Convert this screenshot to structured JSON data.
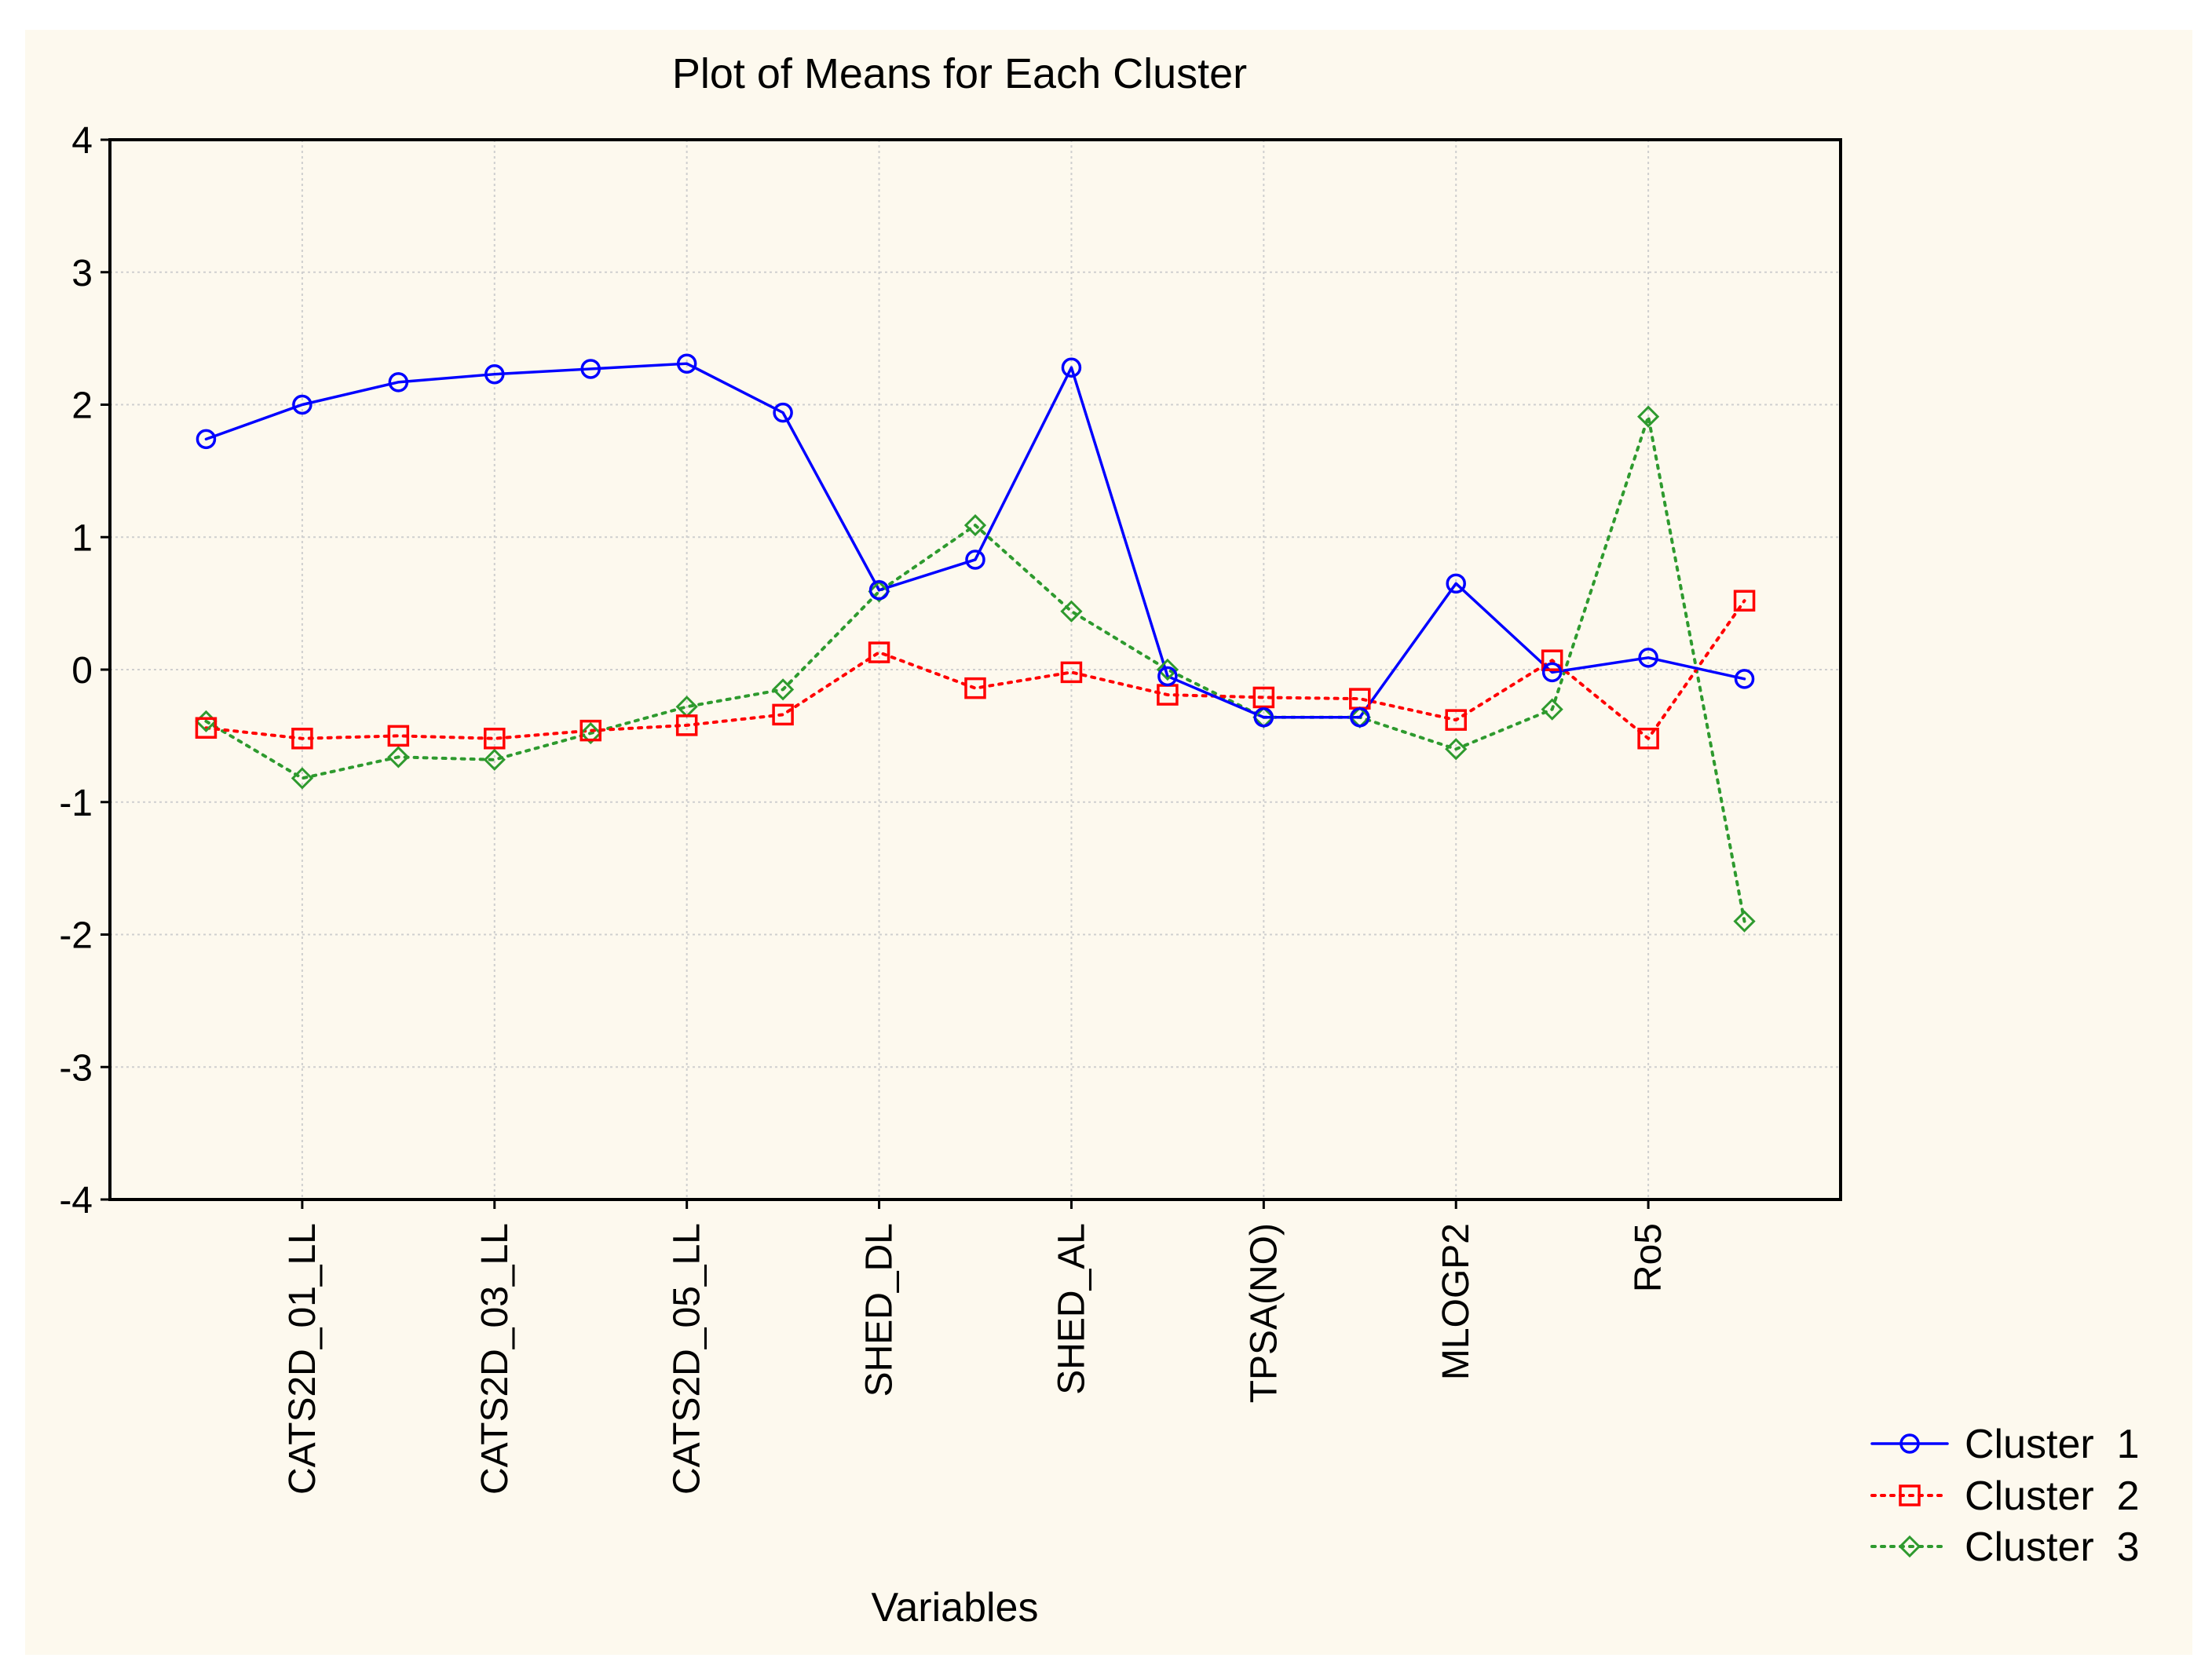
{
  "chart_data": {
    "type": "line",
    "title": "Plot of Means for Each Cluster",
    "xlabel": "Variables",
    "ylabel": "",
    "ylim": [
      -4,
      4
    ],
    "yticks": [
      "4",
      "3",
      "2",
      "1",
      "0",
      "-1",
      "-2",
      "-3",
      "-4"
    ],
    "x_positions": 17,
    "x_tick_labels": [
      {
        "index": 1,
        "label": "CATS2D_01_LL"
      },
      {
        "index": 3,
        "label": "CATS2D_03_LL"
      },
      {
        "index": 5,
        "label": "CATS2D_05_LL"
      },
      {
        "index": 7,
        "label": "SHED_DL"
      },
      {
        "index": 9,
        "label": "SHED_AL"
      },
      {
        "index": 11,
        "label": "TPSA(NO)"
      },
      {
        "index": 13,
        "label": "MLOGP2"
      },
      {
        "index": 15,
        "label": "Ro5"
      }
    ],
    "grid": true,
    "legend_position": "bottom-right",
    "series": [
      {
        "name": "Cluster  1",
        "color": "#0000ff",
        "marker": "circle",
        "line": "solid",
        "values": [
          1.74,
          2.0,
          2.17,
          2.23,
          2.27,
          2.31,
          1.94,
          0.6,
          0.83,
          2.28,
          -0.05,
          -0.36,
          -0.36,
          0.65,
          -0.02,
          0.09,
          -0.07
        ]
      },
      {
        "name": "Cluster  2",
        "color": "#ff0000",
        "marker": "square",
        "line": "dotted",
        "values": [
          -0.44,
          -0.52,
          -0.5,
          -0.52,
          -0.46,
          -0.42,
          -0.34,
          0.13,
          -0.14,
          -0.02,
          -0.19,
          -0.21,
          -0.22,
          -0.38,
          0.07,
          -0.52,
          0.52
        ]
      },
      {
        "name": "Cluster  3",
        "color": "#2e9a2e",
        "marker": "diamond",
        "line": "dotted",
        "values": [
          -0.39,
          -0.82,
          -0.66,
          -0.68,
          -0.48,
          -0.28,
          -0.15,
          0.59,
          1.09,
          0.44,
          0.0,
          -0.36,
          -0.36,
          -0.6,
          -0.3,
          1.91,
          -1.9
        ]
      }
    ]
  }
}
